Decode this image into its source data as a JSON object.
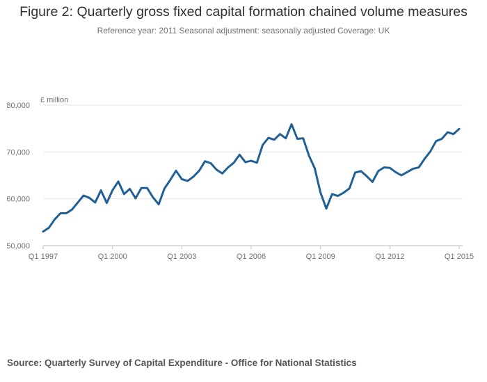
{
  "title": "Figure 2: Quarterly gross fixed capital formation chained volume measures",
  "subtitle": "Reference year: 2011 Seasonal adjustment: seasonally adjusted Coverage: UK",
  "source": "Source: Quarterly Survey of Capital Expenditure - Office for National Statistics",
  "colors": {
    "line": "#206095",
    "grid": "#e6e6e6",
    "axis": "#bbbbbb",
    "text": "#707071"
  },
  "chart_data": {
    "type": "line",
    "ylabel": "£ million",
    "ylim": [
      50000,
      80000
    ],
    "yticks": [
      50000,
      60000,
      70000,
      80000
    ],
    "ytick_labels": [
      "50,000",
      "60,000",
      "70,000",
      "80,000"
    ],
    "x_start": "Q1 1997",
    "x_end": "Q1 2015",
    "xtick_labels": [
      "Q1 1997",
      "Q1 2000",
      "Q1 2003",
      "Q1 2006",
      "Q1 2009",
      "Q1 2012",
      "Q1 2015"
    ],
    "grid": "horizontal",
    "legend": "none",
    "series": [
      {
        "values": [
          53000,
          53800,
          55600,
          56900,
          56900,
          57700,
          59200,
          60700,
          60200,
          59200,
          61800,
          59100,
          61800,
          63700,
          61000,
          62100,
          60100,
          62300,
          62300,
          60300,
          58800,
          62200,
          64000,
          66000,
          64200,
          63800,
          64700,
          66000,
          68000,
          67600,
          66200,
          65400,
          66700,
          67700,
          69400,
          67800,
          68100,
          67700,
          71500,
          73000,
          72600,
          73800,
          72900,
          75900,
          72800,
          72900,
          69200,
          66500,
          61300,
          57900,
          61000,
          60600,
          61300,
          62200,
          65600,
          65900,
          64800,
          63600,
          65900,
          66700,
          66600,
          65700,
          65000,
          65700,
          66400,
          66700,
          68500,
          70100,
          72300,
          72800,
          74200,
          73800,
          74900
        ]
      }
    ]
  }
}
